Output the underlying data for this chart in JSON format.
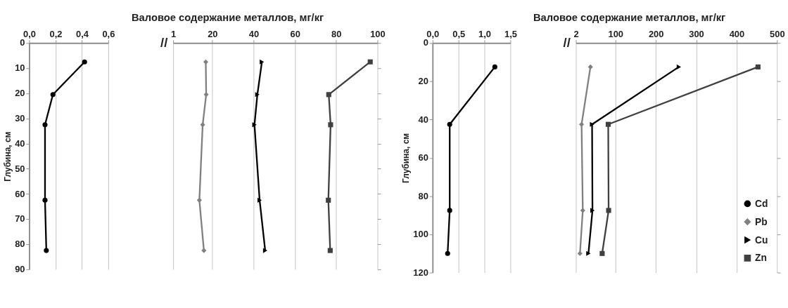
{
  "chart_data": [
    {
      "type": "line",
      "ylabel": "Глубина, см",
      "xlim": [
        0,
        0.6
      ],
      "xticks": [
        {
          "value": 0,
          "label": "0,0"
        },
        {
          "value": 0.2,
          "label": "0,2"
        },
        {
          "value": 0.4,
          "label": "0,4"
        },
        {
          "value": 0.6,
          "label": "0,6"
        }
      ],
      "ylim": [
        90,
        0
      ],
      "yticks": [
        0,
        10,
        20,
        30,
        40,
        50,
        60,
        70,
        80,
        90
      ],
      "grid": "x",
      "series": [
        {
          "color": "#000000",
          "marker": "circle",
          "x": [
            0.42,
            0.18,
            0.12,
            0.12,
            0.13
          ],
          "values": [
            7.5,
            20.5,
            32.5,
            62.5,
            82.5
          ]
        }
      ]
    },
    {
      "type": "line",
      "title": "Валовое содержание металлов, мг/кг",
      "annotations": [
        "//"
      ],
      "xlim": [
        1,
        100
      ],
      "xticks": [
        1,
        20,
        40,
        60,
        80,
        100
      ],
      "ylim": [
        90,
        0
      ],
      "yticks": [
        0,
        10,
        20,
        30,
        40,
        50,
        60,
        70,
        80,
        90
      ],
      "tick_labels": "x",
      "grid": "x",
      "series": [
        {
          "color": "#808080",
          "marker": "diamond",
          "x": [
            16.8,
            17,
            15.3,
            13.7,
            15.9
          ],
          "values": [
            7.5,
            20.5,
            32.5,
            62.5,
            82.5
          ]
        },
        {
          "color": "#000000",
          "marker": "triangle",
          "x": [
            44,
            41.8,
            40.4,
            42.9,
            45.6
          ],
          "values": [
            7.5,
            20.5,
            32.5,
            62.5,
            82.5
          ]
        },
        {
          "color": "#404040",
          "marker": "square",
          "x": [
            96.5,
            76.4,
            77.3,
            76.2,
            77.1
          ],
          "values": [
            7.5,
            20.5,
            32.5,
            62.5,
            82.5
          ]
        }
      ]
    },
    {
      "type": "line",
      "ylabel": "Глубина, см",
      "xlim": [
        0,
        1.5
      ],
      "xticks": [
        {
          "value": 0,
          "label": "0,0"
        },
        {
          "value": 0.5,
          "label": "0,5"
        },
        {
          "value": 1,
          "label": "1,0"
        },
        {
          "value": 1.5,
          "label": "1,5"
        }
      ],
      "ylim": [
        120,
        0
      ],
      "yticks": [
        0,
        20,
        40,
        60,
        80,
        100,
        120
      ],
      "grid": "x",
      "series": [
        {
          "name": "Cd",
          "color": "#000000",
          "marker": "circle",
          "x": [
            1.2,
            0.33,
            0.33,
            0.29
          ],
          "values": [
            12.5,
            42.5,
            87.5,
            110
          ]
        }
      ]
    },
    {
      "type": "line",
      "title": "Валовое содержание металлов, мг/кг",
      "annotations": [
        "//"
      ],
      "xlim": [
        2,
        500
      ],
      "xticks": [
        2,
        100,
        200,
        300,
        400,
        500
      ],
      "ylim": [
        120,
        0
      ],
      "yticks": [
        0,
        20,
        40,
        60,
        80,
        100,
        120
      ],
      "tick_labels": "x",
      "grid": "x",
      "legend": "bottom right",
      "series": [
        {
          "name": "Pb",
          "color": "#808080",
          "marker": "diamond",
          "x": [
            38,
            16,
            19,
            12
          ],
          "values": [
            12.5,
            42.5,
            87.5,
            110
          ]
        },
        {
          "name": "Cu",
          "color": "#000000",
          "marker": "triangle",
          "x": [
            257,
            42,
            43,
            33
          ],
          "values": [
            12.5,
            42.5,
            87.5,
            110
          ]
        },
        {
          "name": "Zn",
          "color": "#404040",
          "marker": "square",
          "x": [
            453,
            82,
            83,
            67
          ],
          "values": [
            12.5,
            42.5,
            87.5,
            110
          ]
        }
      ]
    }
  ]
}
